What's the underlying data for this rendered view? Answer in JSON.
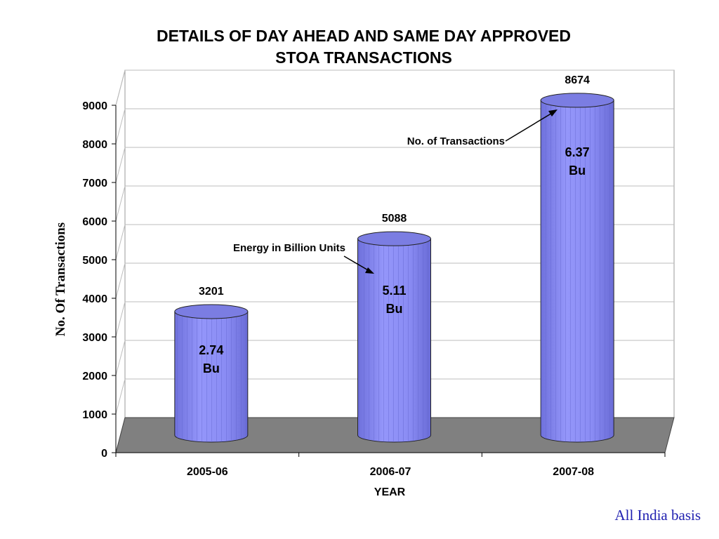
{
  "chart_data": {
    "type": "bar",
    "title_lines": [
      "DETAILS OF DAY AHEAD AND SAME DAY APPROVED",
      "STOA TRANSACTIONS"
    ],
    "xlabel": "YEAR",
    "ylabel": "No. Of Transactions",
    "categories": [
      "2005-06",
      "2006-07",
      "2007-08"
    ],
    "series": [
      {
        "name": "No. of Transactions",
        "values": [
          3201,
          5088,
          8674
        ]
      }
    ],
    "value_labels": [
      "3201",
      "5088",
      "8674"
    ],
    "energy_labels": [
      {
        "value": "2.74",
        "unit": "Bu"
      },
      {
        "value": "5.11",
        "unit": "Bu"
      },
      {
        "value": "6.37",
        "unit": "Bu"
      }
    ],
    "yticks": [
      "0",
      "1000",
      "2000",
      "3000",
      "4000",
      "5000",
      "6000",
      "7000",
      "8000",
      "9000"
    ],
    "ylim": [
      0,
      9000
    ],
    "grid": true,
    "annotations": [
      "No. of Transactions",
      "Energy in Billion Units"
    ],
    "colors": {
      "bar": "#8a8cf4",
      "bar_top": "#7b7de2",
      "floor": "#808080",
      "footnote": "#1f1fb0"
    }
  },
  "footnote": "All India basis"
}
